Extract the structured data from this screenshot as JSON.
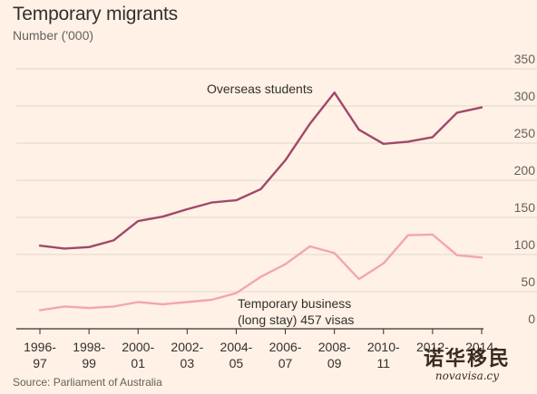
{
  "header": {
    "title": "Temporary migrants",
    "subtitle": "Number ('000)"
  },
  "footer": {
    "source": "Source: Parliament of Australia"
  },
  "watermark": {
    "line1": "诺华移民",
    "line2": "novavisa.cy"
  },
  "chart_data": {
    "type": "line",
    "title": "Temporary migrants",
    "subtitle": "Number ('000)",
    "x_ticks": [
      {
        "top": "1996-",
        "bottom": "97"
      },
      {
        "top": "1998-",
        "bottom": "99"
      },
      {
        "top": "2000-",
        "bottom": "01"
      },
      {
        "top": "2002-",
        "bottom": "03"
      },
      {
        "top": "2004-",
        "bottom": "05"
      },
      {
        "top": "2006-",
        "bottom": "07"
      },
      {
        "top": "2008-",
        "bottom": "09"
      },
      {
        "top": "2010-",
        "bottom": "11"
      },
      {
        "top": "2012-",
        "bottom": ""
      },
      {
        "top": "2014-",
        "bottom": ""
      }
    ],
    "x": [
      1996,
      1997,
      1998,
      1999,
      2000,
      2001,
      2002,
      2003,
      2004,
      2005,
      2006,
      2007,
      2008,
      2009,
      2010,
      2011,
      2012,
      2013,
      2014
    ],
    "ylim": [
      0,
      350
    ],
    "yticks": [
      0,
      50,
      100,
      150,
      200,
      250,
      300,
      350
    ],
    "grid": true,
    "series": [
      {
        "name": "Overseas students",
        "color": "#a0486b",
        "values": [
          112,
          108,
          110,
          119,
          145,
          151,
          161,
          170,
          173,
          188,
          227,
          276,
          318,
          268,
          249,
          252,
          258,
          291,
          298
        ]
      },
      {
        "name": "Temporary business (long stay) 457 visas",
        "name_lines": [
          "Temporary business",
          "(long stay) 457 visas"
        ],
        "color": "#f2a6b0",
        "values": [
          25,
          30,
          28,
          30,
          36,
          33,
          36,
          39,
          48,
          70,
          87,
          111,
          102,
          67,
          88,
          126,
          127,
          99,
          96
        ]
      }
    ]
  }
}
